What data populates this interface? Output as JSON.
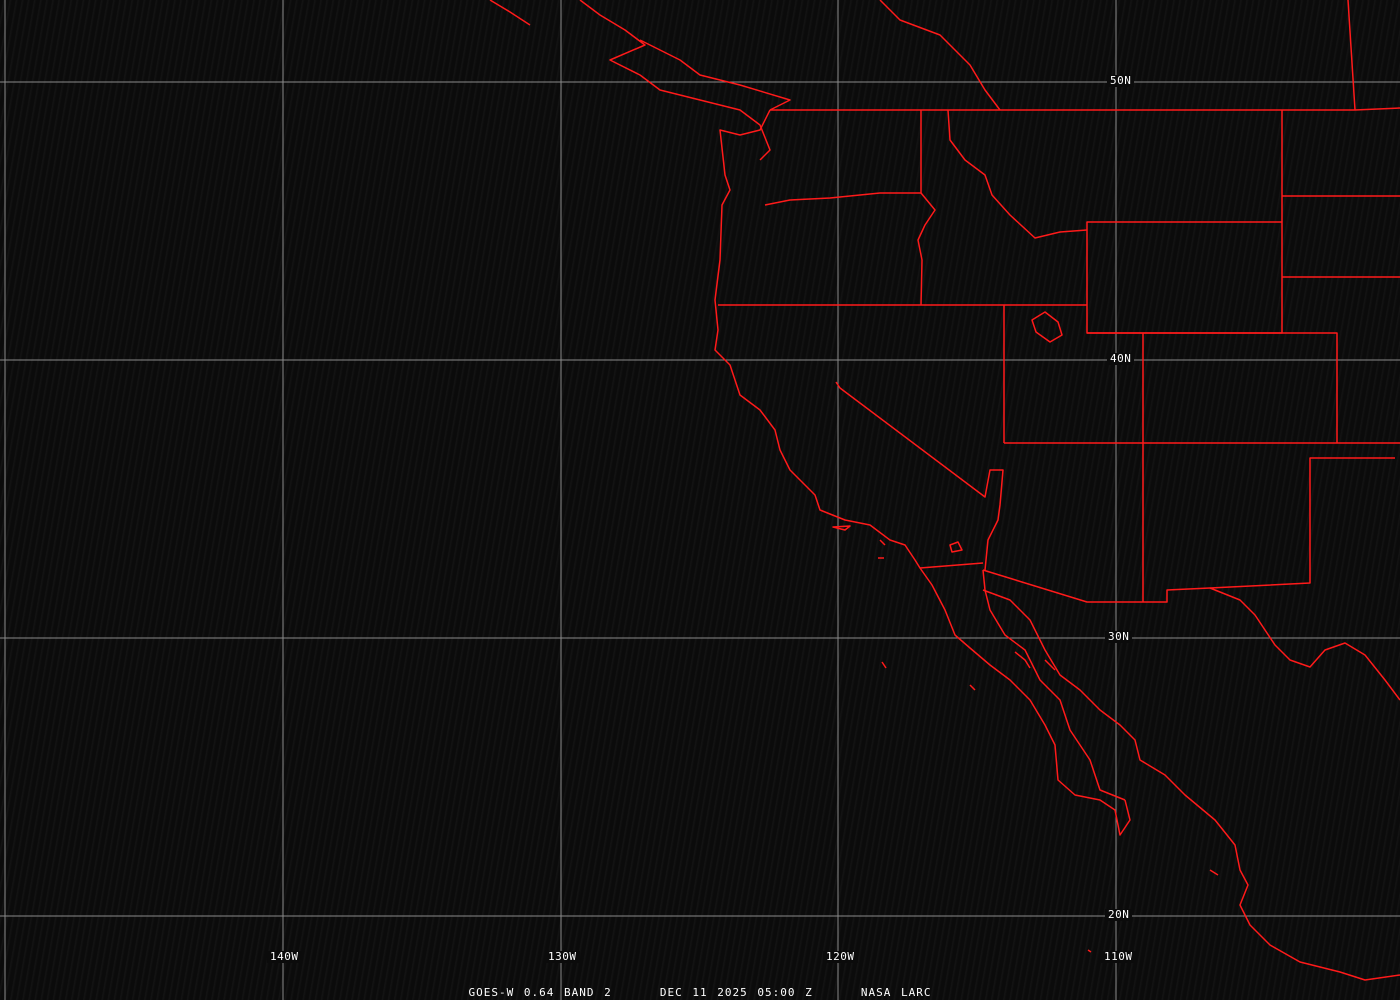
{
  "caption": {
    "satellite": "GOES-W 0.64 BAND 2",
    "datetime": "DEC 11 2025 05:00 Z",
    "source": "NASA LARC"
  },
  "latitude_labels": [
    "50N",
    "40N",
    "30N",
    "20N"
  ],
  "longitude_labels": [
    "140W",
    "130W",
    "120W",
    "110W"
  ],
  "colors": {
    "boundaries": "#ff0000",
    "grid": "#8a8a8a",
    "background": "#0b0b0b"
  }
}
